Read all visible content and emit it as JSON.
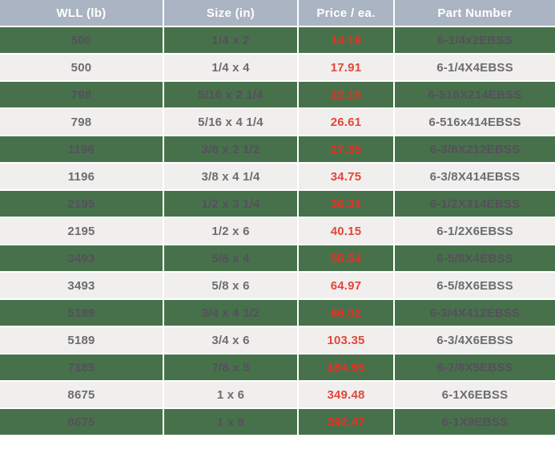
{
  "colors": {
    "header_bg": "#aab4c2",
    "header_text": "#ffffff",
    "green_row_bg": "#47714a",
    "green_row_text": "#564f5e",
    "light_row_bg": "#f0efed",
    "light_row_text": "#6d6c70",
    "price_red_on_green": "#ed2d24",
    "price_red_on_light": "#e2473b"
  },
  "chart_data": {
    "type": "table",
    "columns": [
      "WLL (lb)",
      "Size (in)",
      "Price / ea.",
      "Part Number"
    ],
    "rows": [
      {
        "wll": "500",
        "size": "1/4 x 2",
        "price": "14.19",
        "part": "6-1/4x2EBSS",
        "variant": "green"
      },
      {
        "wll": "500",
        "size": "1/4 x 4",
        "price": "17.91",
        "part": "6-1/4X4EBSS",
        "variant": "light"
      },
      {
        "wll": "798",
        "size": "5/16 x 2 1/4",
        "price": "22.15",
        "part": "6-516X214EBSS",
        "variant": "green"
      },
      {
        "wll": "798",
        "size": "5/16 x 4 1/4",
        "price": "26.61",
        "part": "6-516x414EBSS",
        "variant": "light"
      },
      {
        "wll": "1196",
        "size": "3/8 x 2 1/2",
        "price": "27.35",
        "part": "6-3/8X212EBSS",
        "variant": "green"
      },
      {
        "wll": "1196",
        "size": "3/8 x 4 1/4",
        "price": "34.75",
        "part": "6-3/8X414EBSS",
        "variant": "light"
      },
      {
        "wll": "2195",
        "size": "1/2 x 3 1/4",
        "price": "36.31",
        "part": "6-1/2X314EBSS",
        "variant": "green"
      },
      {
        "wll": "2195",
        "size": "1/2 x 6",
        "price": "40.15",
        "part": "6-1/2X6EBSS",
        "variant": "light"
      },
      {
        "wll": "3493",
        "size": "5/8 x 4",
        "price": "55.54",
        "part": "6-5/8X4EBSS",
        "variant": "green"
      },
      {
        "wll": "3493",
        "size": "5/8 x 6",
        "price": "64.97",
        "part": "6-5/8X6EBSS",
        "variant": "light"
      },
      {
        "wll": "5189",
        "size": "3/4 x 4 1/2",
        "price": "86.02",
        "part": "6-3/4X412EBSS",
        "variant": "green"
      },
      {
        "wll": "5189",
        "size": "3/4 x 6",
        "price": "103.35",
        "part": "6-3/4X6EBSS",
        "variant": "light"
      },
      {
        "wll": "7185",
        "size": "7/8 x 5",
        "price": "184.55",
        "part": "6-7/8X5EBSS",
        "variant": "green"
      },
      {
        "wll": "8675",
        "size": "1 x 6",
        "price": "349.48",
        "part": "6-1X6EBSS",
        "variant": "light"
      },
      {
        "wll": "8675",
        "size": "1 x 9",
        "price": "392.47",
        "part": "6-1X9EBSS",
        "variant": "green"
      }
    ]
  }
}
